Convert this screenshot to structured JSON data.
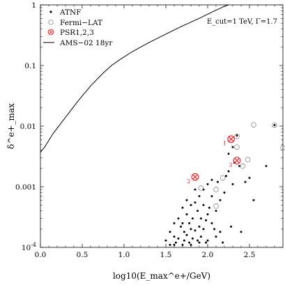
{
  "chart_data": {
    "type": "scatter",
    "title": "",
    "annotation": "E_cut=1 TeV, Γ=1.7",
    "xlabel": "log10(E_max^e+/GeV)",
    "ylabel": "δ^e+_max",
    "xlim": [
      0.0,
      2.9
    ],
    "ylim": [
      0.0001,
      1
    ],
    "yscale": "log",
    "xticks": [
      "0.0",
      "0.5",
      "1.0",
      "1.5",
      "2.0",
      "2.5"
    ],
    "yticks": [
      "10^-4",
      "0.001",
      "0.01",
      "0.1",
      "1"
    ],
    "legend": {
      "position": "top-left",
      "entries": [
        {
          "label": "ATNF",
          "marker": "dot"
        },
        {
          "label": "Fermi−LAT",
          "marker": "open-circle"
        },
        {
          "label": "PSR1,2,3",
          "marker": "circled-x"
        },
        {
          "label": "AMS−02 18yr",
          "marker": "line"
        }
      ]
    },
    "colors": {
      "psr": "#e8262a",
      "fermi": "#888888",
      "atnf": "#000000"
    },
    "series": [
      {
        "name": "AMS−02 18yr",
        "kind": "line",
        "x": [
          0.0,
          0.05,
          0.15,
          0.3,
          0.45,
          0.6,
          0.75,
          0.85,
          0.95,
          1.1,
          1.3,
          1.5,
          1.7,
          1.9,
          2.05,
          2.18,
          2.25
        ],
        "y": [
          0.0037,
          0.0045,
          0.0075,
          0.014,
          0.026,
          0.046,
          0.075,
          0.1,
          0.125,
          0.17,
          0.24,
          0.33,
          0.45,
          0.6,
          0.76,
          0.92,
          1.0
        ]
      },
      {
        "name": "ATNF",
        "kind": "dot",
        "x": [
          1.5,
          1.55,
          1.55,
          1.6,
          1.6,
          1.62,
          1.65,
          1.65,
          1.68,
          1.7,
          1.7,
          1.72,
          1.72,
          1.75,
          1.75,
          1.78,
          1.78,
          1.8,
          1.8,
          1.82,
          1.82,
          1.85,
          1.85,
          1.88,
          1.88,
          1.9,
          1.9,
          1.92,
          1.92,
          1.95,
          1.95,
          1.98,
          1.98,
          2.0,
          2.0,
          2.02,
          2.05,
          2.05,
          2.08,
          2.1,
          2.1,
          2.12,
          2.15,
          2.15,
          2.18,
          2.2,
          2.22,
          2.25,
          2.28,
          2.3,
          2.32,
          2.35,
          2.38,
          2.4,
          2.45,
          2.5,
          2.55,
          2.7,
          2.8,
          1.6,
          1.7,
          1.8,
          1.9,
          2.0,
          1.75,
          1.85,
          1.95,
          2.05,
          2.25,
          2.3
        ],
        "y": [
          0.00013,
          0.00018,
          0.00011,
          0.00025,
          0.00015,
          0.00012,
          0.0003,
          0.00014,
          0.00022,
          0.00045,
          0.00011,
          0.00018,
          0.00013,
          0.00035,
          0.00016,
          0.00025,
          0.00012,
          0.0005,
          0.0002,
          0.0003,
          0.00014,
          0.00055,
          0.00019,
          0.0004,
          0.00013,
          0.0007,
          0.00022,
          0.0003,
          0.00015,
          0.0009,
          0.0002,
          0.00028,
          0.00012,
          0.0011,
          0.00035,
          0.00045,
          0.0013,
          0.00025,
          0.0002,
          0.00015,
          0.0004,
          0.0012,
          0.00018,
          0.0006,
          0.00012,
          0.0008,
          0.0015,
          0.0018,
          0.00022,
          0.0011,
          0.0025,
          0.007,
          0.0022,
          0.00018,
          0.0012,
          0.0014,
          0.0006,
          0.0022,
          0.0104,
          0.00011,
          0.00025,
          0.00011,
          0.00012,
          0.00013,
          0.0006,
          0.0009,
          0.0005,
          0.0007,
          0.0035,
          0.0045
        ]
      },
      {
        "name": "Fermi−LAT",
        "kind": "open-circle",
        "x": [
          1.92,
          2.1,
          2.18,
          2.35,
          2.42,
          2.48,
          2.55,
          2.8,
          2.9,
          2.1,
          2.35
        ],
        "y": [
          0.00095,
          0.00048,
          0.0014,
          0.0045,
          0.0022,
          0.0028,
          0.0105,
          0.0104,
          0.0044,
          0.0009,
          0.0068
        ]
      },
      {
        "name": "PSR1,2,3",
        "kind": "circled-x",
        "x": [
          2.28,
          1.85,
          2.35
        ],
        "y": [
          0.0061,
          0.00145,
          0.0027
        ],
        "labels": [
          "1",
          "2",
          "3"
        ]
      }
    ]
  }
}
